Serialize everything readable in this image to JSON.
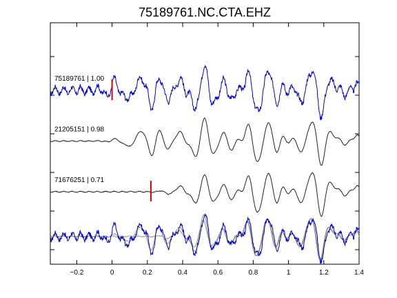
{
  "chart_data": {
    "type": "line",
    "title": "75189761.NC.CTA.EHZ",
    "xlabel": "",
    "ylabel": "",
    "xlim": [
      -0.35,
      1.4
    ],
    "xticks": [
      -0.2,
      0,
      0.2,
      0.4,
      0.6,
      0.8,
      1,
      1.2,
      1.4
    ],
    "xtick_labels": [
      "−0.2",
      "0",
      "0.2",
      "0.4",
      "0.6",
      "0.8",
      "1",
      "1.2",
      "1.4"
    ],
    "ylim": [
      0,
      10
    ],
    "yticks": [
      0.6,
      2.2,
      3.8,
      5.4,
      7.0,
      8.6
    ],
    "grid": false,
    "colors": {
      "primary": "#0000cc",
      "secondary": "#222222",
      "overlay_gray": "#909090",
      "pick": "#dd0000"
    },
    "traces": [
      {
        "label": "75189761 | 1.00",
        "event": "75189761",
        "correlation": 1.0,
        "color": "#0000cc",
        "baseline": 7.2,
        "amp": 1.0,
        "pick": 0.0,
        "onset": -0.05,
        "noise": 0.25,
        "shift": 0.0
      },
      {
        "label": "21205151 | 0.98",
        "event": "21205151",
        "correlation": 0.98,
        "color": "#222222",
        "baseline": 5.1,
        "amp": 0.95,
        "pick": null,
        "onset": 0.05,
        "noise": 0.03,
        "shift": 0.0
      },
      {
        "label": "71676251 | 0.71",
        "event": "71676251",
        "correlation": 0.71,
        "color": "#222222",
        "baseline": 3.0,
        "amp": 0.95,
        "pick": 0.22,
        "onset": 0.33,
        "noise": 0.03,
        "shift": 0.0
      }
    ],
    "overlay_baseline": 1.15,
    "overlay_amp": 0.9
  }
}
